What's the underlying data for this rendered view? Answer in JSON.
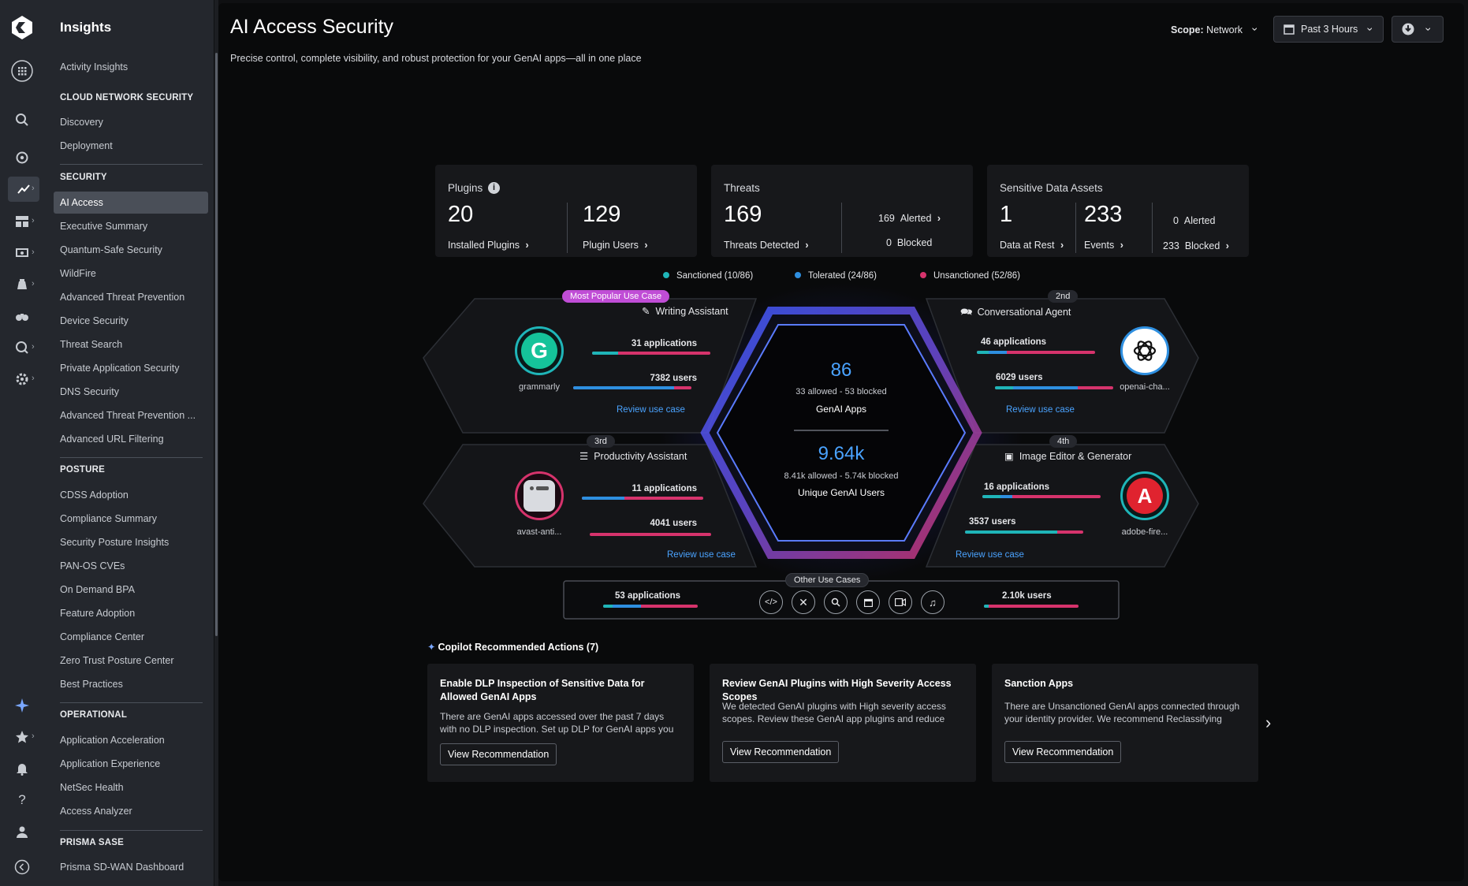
{
  "rail": {
    "icons": [
      "logo-icon",
      "apps-grid-icon",
      "search-icon",
      "target-icon",
      "insights-icon",
      "dashboard-icon",
      "workflows-icon",
      "manage-icon",
      "binoculars-icon",
      "incidents-icon",
      "settings-icon",
      "copilot-sparkle-icon",
      "star-icon",
      "bell-icon",
      "help-icon",
      "user-icon",
      "collapse-icon"
    ]
  },
  "nav": {
    "title": "Insights",
    "activity": "Activity Insights",
    "sec_cloud": "CLOUD NETWORK SECURITY",
    "cloud_items": [
      "Discovery",
      "Deployment"
    ],
    "sec_security": "SECURITY",
    "security_items": [
      "AI Access",
      "Executive Summary",
      "Quantum-Safe Security",
      "WildFire",
      "Advanced Threat Prevention",
      "Device Security",
      "Threat Search",
      "Private Application Security",
      "DNS Security",
      "Advanced Threat Prevention ...",
      "Advanced URL Filtering"
    ],
    "sec_posture": "POSTURE",
    "posture_items": [
      "CDSS Adoption",
      "Compliance Summary",
      "Security Posture Insights",
      "PAN-OS CVEs",
      "On Demand BPA",
      "Feature Adoption",
      "Compliance Center",
      "Zero Trust Posture Center",
      "Best Practices"
    ],
    "sec_operational": "OPERATIONAL",
    "operational_items": [
      "Application Acceleration",
      "Application Experience",
      "NetSec Health",
      "Access Analyzer"
    ],
    "sec_prisma": "PRISMA SASE",
    "prisma_items": [
      "Prisma SD-WAN Dashboard"
    ]
  },
  "header": {
    "title": "AI Access Security",
    "subtitle": "Precise control, complete visibility, and robust protection for your GenAI apps—all in one place",
    "scope_label": "Scope:",
    "scope_value": "Network",
    "time_range": "Past 3 Hours"
  },
  "plugins": {
    "label": "Plugins",
    "installed_value": "20",
    "installed_label": "Installed Plugins",
    "users_value": "129",
    "users_label": "Plugin Users"
  },
  "threats": {
    "label": "Threats",
    "detected_value": "169",
    "detected_label": "Threats Detected",
    "alerted_value": "169",
    "alerted_label": "Alerted",
    "blocked_value": "0",
    "blocked_label": "Blocked"
  },
  "sensitive": {
    "label": "Sensitive Data Assets",
    "rest_value": "1",
    "rest_label": "Data at Rest",
    "events_value": "233",
    "events_label": "Events",
    "alerted_value": "0",
    "alerted_label": "Alerted",
    "blocked_value": "233",
    "blocked_label": "Blocked"
  },
  "legend": {
    "sanctioned": "Sanctioned (10/86)",
    "tolerated": "Tolerated (24/86)",
    "unsanctioned": "Unsanctioned (52/86)",
    "colors": {
      "sanctioned": "#1fb5b8",
      "tolerated": "#2e8fe0",
      "unsanctioned": "#d6336c"
    }
  },
  "center": {
    "apps_value": "86",
    "apps_sub": "33 allowed - 53 blocked",
    "apps_label": "GenAI Apps",
    "users_value": "9.64k",
    "users_sub": "8.41k allowed - 5.74k blocked",
    "users_label": "Unique GenAI Users"
  },
  "use_cases": [
    {
      "badge": "Most Popular Use Case",
      "name": "Writing Assistant",
      "apps": "31 applications",
      "users": "7382 users",
      "app": "grammarly",
      "link": "Review use case",
      "apps_split": [
        0.22,
        0.0
      ],
      "users_split": [
        0.0,
        0.85
      ]
    },
    {
      "badge": "2nd",
      "name": "Conversational Agent",
      "apps": "46 applications",
      "users": "6029 users",
      "app": "openai-cha...",
      "link": "Review use case",
      "apps_split": [
        0.1,
        0.15
      ],
      "users_split": [
        0.15,
        0.55
      ]
    },
    {
      "badge": "3rd",
      "name": "Productivity Assistant",
      "apps": "11 applications",
      "users": "4041 users",
      "app": "avast-anti...",
      "link": "Review use case",
      "apps_split": [
        0.0,
        0.35
      ],
      "users_split": [
        0.0,
        0.0
      ]
    },
    {
      "badge": "4th",
      "name": "Image Editor & Generator",
      "apps": "16 applications",
      "users": "3537 users",
      "app": "adobe-fire...",
      "link": "Review use case",
      "apps_split": [
        0.15,
        0.1
      ],
      "users_split": [
        0.78,
        0.0
      ]
    }
  ],
  "other": {
    "label": "Other Use Cases",
    "apps": "53 applications",
    "users": "2.10k users",
    "icons": [
      "code-icon",
      "tools-icon",
      "search-icon",
      "calendar-icon",
      "video-icon",
      "music-icon"
    ],
    "apps_split": [
      0.1,
      0.3
    ],
    "users_split": [
      0.05,
      0.0
    ]
  },
  "copilot": {
    "title": "Copilot Recommended Actions (7)",
    "cards": [
      {
        "title": "Enable DLP Inspection of Sensitive Data for Allowed GenAI Apps",
        "desc": "There are GenAI apps accessed over the past 7 days with no DLP inspection. Set up DLP for GenAI apps you allow",
        "button": "View Recommendation"
      },
      {
        "title": "Review GenAI Plugins with High Severity Access Scopes",
        "desc": "We detected GenAI plugins with High severity access scopes. Review these GenAI app plugins and reduce",
        "button": "View Recommendation"
      },
      {
        "title": "Sanction Apps",
        "desc": "There are Unsanctioned GenAI apps connected through your identity provider. We recommend Reclassifying these",
        "button": "View Recommendation"
      }
    ]
  }
}
